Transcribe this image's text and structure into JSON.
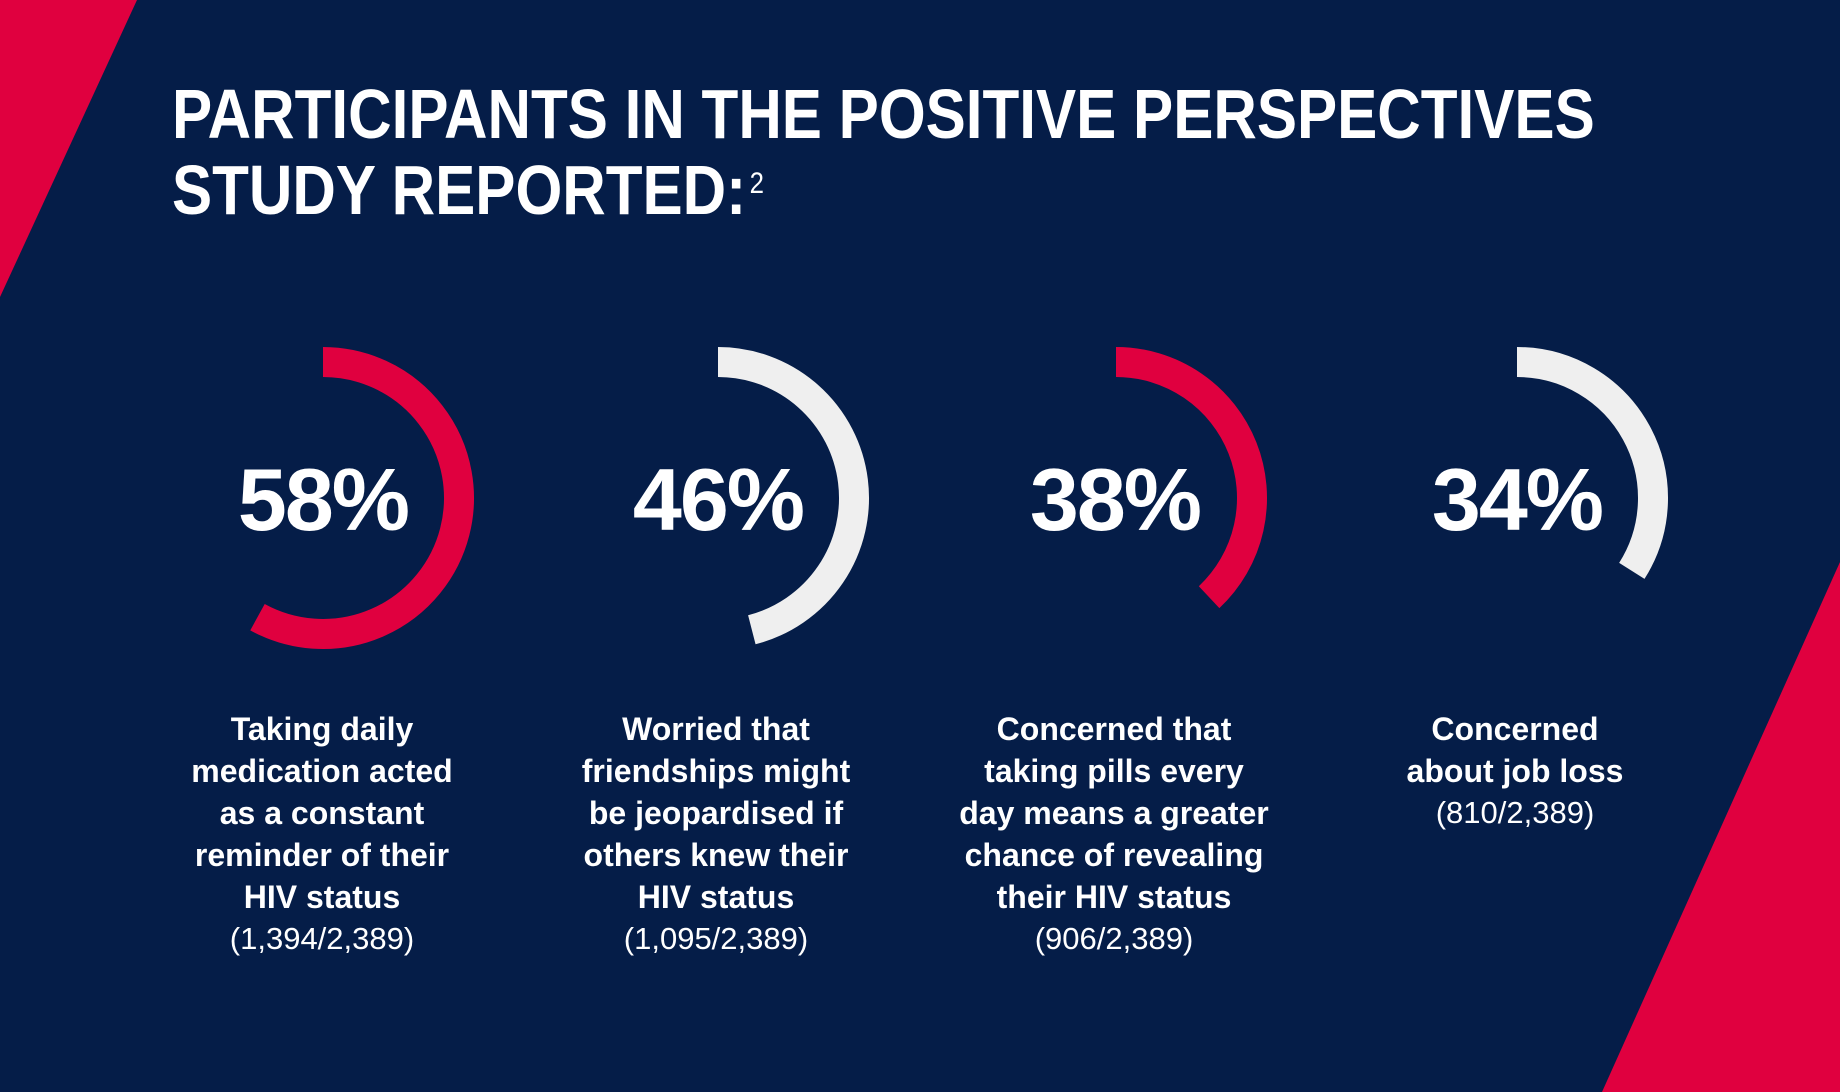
{
  "title": {
    "line1": "PARTICIPANTS IN THE POSITIVE PERSPECTIVES",
    "line2": "STUDY REPORTED:",
    "superscript": "2"
  },
  "colors": {
    "background": "#051d48",
    "accent_red": "#e0003f",
    "light": "#efefef",
    "text": "#ffffff"
  },
  "chart_data": {
    "type": "radial-progress",
    "title": "PARTICIPANTS IN THE POSITIVE PERSPECTIVES STUDY REPORTED:",
    "max": 100,
    "items": [
      {
        "value": 58,
        "label": "58%",
        "description": "Taking daily medication acted as a constant reminder of their HIV status",
        "count": "(1,394/2,389)",
        "color": "#e0003f"
      },
      {
        "value": 46,
        "label": "46%",
        "description": "Worried that friendships might be jeopardised if others knew their HIV status",
        "count": "(1,095/2,389)",
        "color": "#efefef"
      },
      {
        "value": 38,
        "label": "38%",
        "description": "Concerned that taking pills every day means a greater chance of revealing their HIV status",
        "count": "(906/2,389)",
        "color": "#e0003f"
      },
      {
        "value": 34,
        "label": "34%",
        "description": "Concerned about job loss",
        "count": "(810/2,389)",
        "color": "#efefef"
      }
    ]
  }
}
